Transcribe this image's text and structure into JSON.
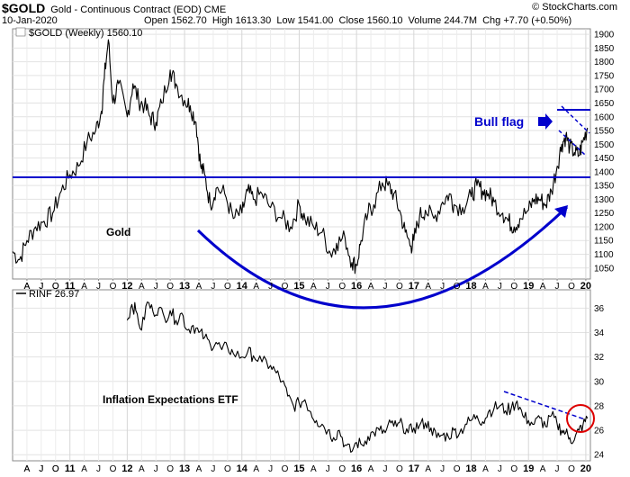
{
  "header": {
    "symbol": "$GOLD",
    "description": "Gold - Continuous Contract (EOD) CME",
    "date": "10-Jan-2020",
    "quote": "Open 1562.70  High 1613.30  Low 1541.00  Close 1560.10  Volume 244.7M  Chg +7.70 (+0.50%)",
    "source": "© StockCharts.com"
  },
  "chart_data": [
    {
      "type": "line",
      "panel": "upper",
      "legend": "$GOLD (Weekly) 1560.10",
      "ylim": [
        1010,
        1920
      ],
      "yticks": [
        1050,
        1100,
        1150,
        1200,
        1250,
        1300,
        1350,
        1400,
        1450,
        1500,
        1550,
        1600,
        1650,
        1700,
        1750,
        1800,
        1850,
        1900
      ],
      "x": [
        2010.0,
        2010.12,
        2010.25,
        2010.4,
        2010.55,
        2010.7,
        2010.85,
        2011.0,
        2011.15,
        2011.3,
        2011.45,
        2011.55,
        2011.6,
        2011.67,
        2011.75,
        2011.85,
        2012.0,
        2012.1,
        2012.2,
        2012.3,
        2012.4,
        2012.5,
        2012.6,
        2012.75,
        2012.85,
        2013.0,
        2013.1,
        2013.2,
        2013.28,
        2013.35,
        2013.45,
        2013.55,
        2013.7,
        2013.85,
        2014.0,
        2014.1,
        2014.2,
        2014.35,
        2014.5,
        2014.7,
        2014.85,
        2015.0,
        2015.1,
        2015.25,
        2015.4,
        2015.55,
        2015.65,
        2015.8,
        2015.92,
        2016.0,
        2016.08,
        2016.2,
        2016.3,
        2016.45,
        2016.55,
        2016.65,
        2016.75,
        2016.85,
        2016.95,
        2017.0,
        2017.1,
        2017.2,
        2017.35,
        2017.5,
        2017.62,
        2017.7,
        2017.85,
        2018.0,
        2018.1,
        2018.2,
        2018.3,
        2018.4,
        2018.55,
        2018.65,
        2018.75,
        2018.85,
        2019.0,
        2019.1,
        2019.2,
        2019.3,
        2019.4,
        2019.5,
        2019.58,
        2019.65,
        2019.72,
        2019.8,
        2019.88,
        2019.95,
        2020.03
      ],
      "values": [
        1110,
        1080,
        1150,
        1200,
        1220,
        1250,
        1330,
        1390,
        1420,
        1510,
        1550,
        1620,
        1740,
        1880,
        1650,
        1720,
        1600,
        1720,
        1660,
        1640,
        1600,
        1580,
        1650,
        1770,
        1720,
        1660,
        1640,
        1580,
        1420,
        1390,
        1280,
        1340,
        1320,
        1230,
        1250,
        1330,
        1300,
        1320,
        1270,
        1230,
        1200,
        1280,
        1230,
        1200,
        1180,
        1100,
        1140,
        1160,
        1070,
        1060,
        1150,
        1250,
        1280,
        1360,
        1350,
        1320,
        1260,
        1180,
        1130,
        1150,
        1240,
        1260,
        1230,
        1290,
        1320,
        1280,
        1270,
        1310,
        1350,
        1330,
        1320,
        1290,
        1250,
        1220,
        1200,
        1230,
        1260,
        1300,
        1300,
        1280,
        1330,
        1420,
        1500,
        1530,
        1490,
        1470,
        1460,
        1510,
        1560
      ],
      "annotations": {
        "series_label": "Gold",
        "pattern_label": "Bull flag",
        "support_line_level": 1380,
        "flag_upper_level": 1570
      },
      "colors": {
        "series": "#000000",
        "annotation": "#0000cc"
      }
    },
    {
      "type": "line",
      "panel": "lower",
      "legend": "RINF 26.97",
      "ylim": [
        23.5,
        37.5
      ],
      "yticks": [
        24,
        26,
        28,
        30,
        32,
        34,
        36
      ],
      "x": [
        2012.0,
        2012.08,
        2012.15,
        2012.25,
        2012.35,
        2012.45,
        2012.55,
        2012.65,
        2012.75,
        2012.85,
        2012.95,
        2013.05,
        2013.15,
        2013.25,
        2013.35,
        2013.45,
        2013.55,
        2013.65,
        2013.75,
        2013.85,
        2014.0,
        2014.1,
        2014.2,
        2014.35,
        2014.5,
        2014.6,
        2014.7,
        2014.8,
        2014.9,
        2015.0,
        2015.1,
        2015.2,
        2015.3,
        2015.4,
        2015.5,
        2015.6,
        2015.7,
        2015.8,
        2015.9,
        2016.0,
        2016.1,
        2016.2,
        2016.3,
        2016.4,
        2016.5,
        2016.6,
        2016.7,
        2016.8,
        2016.9,
        2017.0,
        2017.1,
        2017.2,
        2017.3,
        2017.4,
        2017.5,
        2017.6,
        2017.7,
        2017.8,
        2017.9,
        2018.0,
        2018.1,
        2018.2,
        2018.3,
        2018.4,
        2018.5,
        2018.6,
        2018.7,
        2018.8,
        2018.9,
        2019.0,
        2019.1,
        2019.2,
        2019.3,
        2019.4,
        2019.5,
        2019.58,
        2019.65,
        2019.72,
        2019.8,
        2019.88,
        2019.95,
        2020.03
      ],
      "values": [
        35,
        36.3,
        35.8,
        34.2,
        36.5,
        35.7,
        36.0,
        35.2,
        35.8,
        35.0,
        35.6,
        34.2,
        34.6,
        34.0,
        33.6,
        33.0,
        33.2,
        32.6,
        32.8,
        32.3,
        32.0,
        32.4,
        32.1,
        31.6,
        31.3,
        30.7,
        30.0,
        28.8,
        28.0,
        28.2,
        28.5,
        27.5,
        26.8,
        26.5,
        26.0,
        25.4,
        26.0,
        24.8,
        24.2,
        25.0,
        24.8,
        25.5,
        25.8,
        26.0,
        25.8,
        26.6,
        26.3,
        26.5,
        25.8,
        26.2,
        26.4,
        26.6,
        26.2,
        25.4,
        25.6,
        25.5,
        26.0,
        25.8,
        26.5,
        26.8,
        27.2,
        26.7,
        27.5,
        27.8,
        28.0,
        27.6,
        27.8,
        28.4,
        27.2,
        26.8,
        26.5,
        27.0,
        26.3,
        27.2,
        26.5,
        26.0,
        25.8,
        25.4,
        25.2,
        26.0,
        26.4,
        26.97
      ],
      "annotations": {
        "series_label": "Inflation Expectations ETF",
        "trendline": "dashed, downward",
        "breakout_marker": "circle"
      },
      "colors": {
        "series": "#000000",
        "trendline": "#0000cc",
        "marker": "#dd0000"
      }
    }
  ],
  "x_axis": {
    "year_labels": [
      "11",
      "12",
      "13",
      "14",
      "15",
      "16",
      "17",
      "18",
      "19",
      "20"
    ],
    "month_labels": [
      "A",
      "J",
      "O"
    ]
  }
}
